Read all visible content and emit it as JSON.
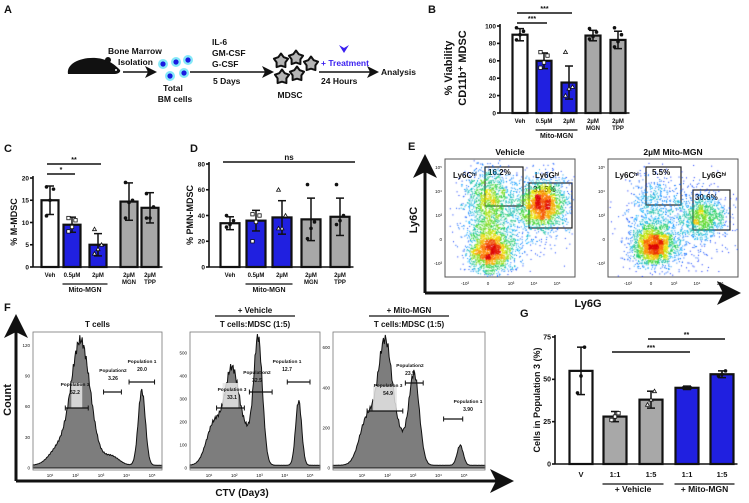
{
  "panel_labels": {
    "a": "A",
    "b": "B",
    "c": "C",
    "d": "D",
    "e": "E",
    "f": "F",
    "g": "G"
  },
  "panel_a": {
    "bm_line1": "Bone Marrow",
    "bm_line2": "Isolation",
    "cells_line1": "Total",
    "cells_line2": "BM cells",
    "cytokines": [
      "IL-6",
      "GM-CSF",
      "G-CSF"
    ],
    "duration": "5 Days",
    "mdsc": "MDSC",
    "treatment": "+ Treatment",
    "treatment_time": "24 Hours",
    "analysis": "Analysis",
    "colors": {
      "treatment": "#3a1ff0",
      "cell": "#1a1ae0",
      "cell_halo": "#86e8f8",
      "mdsc": "#b5b5b5"
    }
  },
  "chart_data": [
    {
      "id": "B",
      "type": "bar",
      "ylabel": [
        "% Viability",
        "CD11b⁺ MDSC"
      ],
      "ylim": [
        0,
        100
      ],
      "yticks": [
        0,
        20,
        40,
        60,
        80,
        100
      ],
      "categories": [
        [
          "Veh"
        ],
        [
          "0.5µM"
        ],
        [
          "2µM"
        ],
        [
          "2µM",
          "MGN"
        ],
        [
          "2µM",
          "TPP"
        ]
      ],
      "values": [
        90,
        60,
        35,
        89,
        84
      ],
      "errors": [
        7,
        9,
        19,
        6,
        10
      ],
      "points": [
        [
          84,
          90,
          94,
          98
        ],
        [
          52,
          58,
          66,
          70
        ],
        [
          20,
          28,
          30,
          70
        ],
        [
          85,
          88,
          93,
          97
        ],
        [
          76,
          82,
          90,
          98
        ]
      ],
      "colors": [
        "#ffffff",
        "#2020e0",
        "#2020e0",
        "#a8a8a8",
        "#a8a8a8"
      ],
      "groups": [
        {
          "label": "Mito-MGN",
          "from": 1,
          "to": 2
        }
      ],
      "significance": [
        {
          "from": 0,
          "to": 2,
          "label": "***"
        },
        {
          "from": 0,
          "to": 1,
          "label": "***"
        }
      ]
    },
    {
      "id": "C",
      "type": "bar",
      "ylabel": [
        "% M-MDSC"
      ],
      "ylim": [
        0,
        20
      ],
      "yticks": [
        0,
        5,
        10,
        15,
        20
      ],
      "categories": [
        [
          "Veh"
        ],
        [
          "0.5µM"
        ],
        [
          "2µM"
        ],
        [
          "2µM",
          "MGN"
        ],
        [
          "2µM",
          "TPP"
        ]
      ],
      "values": [
        15,
        9.5,
        5,
        14.7,
        13.3
      ],
      "errors": [
        3.2,
        1.7,
        2.5,
        4.2,
        3.4
      ],
      "points": [
        [
          11.5,
          15,
          17.5,
          18
        ],
        [
          8,
          9,
          10.5,
          11
        ],
        [
          3,
          4,
          5,
          8.5
        ],
        [
          11,
          14.5,
          15,
          19
        ],
        [
          11,
          11,
          13.5,
          16.5
        ]
      ],
      "colors": [
        "#ffffff",
        "#2020e0",
        "#2020e0",
        "#a8a8a8",
        "#a8a8a8"
      ],
      "groups": [
        {
          "label": "Mito-MGN",
          "from": 1,
          "to": 2
        }
      ],
      "significance": [
        {
          "from": 0,
          "to": 2,
          "label": "**"
        },
        {
          "from": 0,
          "to": 1,
          "label": "*"
        }
      ]
    },
    {
      "id": "D",
      "type": "bar",
      "ylabel": [
        "% PMN-MDSC"
      ],
      "ylim": [
        0,
        80
      ],
      "yticks": [
        0,
        20,
        40,
        60,
        80
      ],
      "categories": [
        [
          "Veh"
        ],
        [
          "0.5µM"
        ],
        [
          "2µM"
        ],
        [
          "2µM",
          "MGN"
        ],
        [
          "2µM",
          "TPP"
        ]
      ],
      "values": [
        34,
        36,
        38.5,
        37,
        39
      ],
      "errors": [
        5,
        8,
        13,
        16.5,
        14.5
      ],
      "points": [
        [
          31,
          33,
          36,
          40
        ],
        [
          20,
          35,
          40,
          41
        ],
        [
          30,
          30,
          40,
          60
        ],
        [
          22,
          30,
          35,
          64
        ],
        [
          33,
          36,
          40,
          64
        ]
      ],
      "colors": [
        "#ffffff",
        "#2020e0",
        "#2020e0",
        "#a8a8a8",
        "#a8a8a8"
      ],
      "groups": [
        {
          "label": "Mito-MGN",
          "from": 1,
          "to": 2
        }
      ],
      "significance": [
        {
          "from": 0,
          "to": 4,
          "label": "ns"
        }
      ]
    },
    {
      "id": "G",
      "type": "bar",
      "ylabel": [
        "Cells in Population 3 (%)"
      ],
      "ylim": [
        0,
        75
      ],
      "yticks": [
        0,
        25,
        50,
        75
      ],
      "categories": [
        [
          "V"
        ],
        [
          "1:1"
        ],
        [
          "1:5"
        ],
        [
          "1:1"
        ],
        [
          "1:5"
        ]
      ],
      "values": [
        55,
        28,
        38,
        45,
        53
      ],
      "errors": [
        14,
        3,
        5,
        1,
        2
      ],
      "points": [
        [
          42,
          52,
          69
        ],
        [
          26,
          28,
          30
        ],
        [
          35,
          38,
          43
        ],
        [
          45,
          45,
          45
        ],
        [
          52,
          53,
          55
        ]
      ],
      "colors": [
        "#ffffff",
        "#a8a8a8",
        "#a8a8a8",
        "#2020e0",
        "#2020e0"
      ],
      "groups": [
        {
          "label": "+ Vehicle",
          "from": 1,
          "to": 2
        },
        {
          "label": "+ Mito-MGN",
          "from": 3,
          "to": 4
        }
      ],
      "significance": [
        {
          "from": 1,
          "to": 3,
          "label": "***"
        },
        {
          "from": 2,
          "to": 4,
          "label": "**"
        }
      ]
    },
    {
      "id": "E",
      "type": "scatter",
      "xlabel": "Ly6G",
      "ylabel": "Ly6C",
      "yticks": [
        "10⁵",
        "10⁴",
        "10³",
        "0",
        "-10³"
      ],
      "xticks": [
        "-10³",
        "0",
        "10³",
        "10⁴",
        "10⁵"
      ],
      "plots": [
        {
          "title": "Vehicle",
          "gates": [
            {
              "name": "Ly6Cʰⁱ",
              "value": "16.2%"
            },
            {
              "name": "Ly6Gʰⁱ",
              "value": "31.5%"
            }
          ]
        },
        {
          "title": "2µM  Mito-MGN",
          "gates": [
            {
              "name": "Ly6Cʰⁱ",
              "value": "5.5%"
            },
            {
              "name": "Ly6Gʰⁱ",
              "value": "30.6%"
            }
          ]
        }
      ]
    },
    {
      "id": "F",
      "type": "area",
      "xlabel": "CTV (Day3)",
      "ylabel": "Count",
      "xticks": [
        "10¹",
        "10²",
        "10³",
        "10⁴",
        "10⁵"
      ],
      "plots": [
        {
          "title": "T cells",
          "header": "",
          "ymax": 133,
          "yticks": [
            0,
            30,
            60,
            90,
            120
          ],
          "peaks": [
            [
              1.3,
              15,
              0.35
            ],
            [
              2.2,
              122,
              0.38
            ],
            [
              3.4,
              9,
              0.3
            ],
            [
              4.6,
              73,
              0.14
            ]
          ],
          "populations": [
            {
              "name": "Population 3",
              "value": "52.2"
            },
            {
              "name": "Population2",
              "value": "3.26"
            },
            {
              "name": "Population 1",
              "value": "20.0"
            }
          ]
        },
        {
          "title": "T cells:MDSC (1:5)",
          "header": "+ Vehicle",
          "ymax": 591,
          "yticks": [
            0,
            100,
            200,
            300,
            400,
            500
          ],
          "peaks": [
            [
              1.2,
              180,
              0.3
            ],
            [
              1.9,
              400,
              0.28
            ],
            [
              2.95,
              520,
              0.17
            ],
            [
              2.5,
              120,
              0.3
            ],
            [
              4.55,
              280,
              0.12
            ]
          ],
          "populations": [
            {
              "name": "Population 3",
              "value": "33.1"
            },
            {
              "name": "Population2",
              "value": "32.5"
            },
            {
              "name": "Population 1",
              "value": "12.7"
            }
          ]
        },
        {
          "title": "T cells:MDSC (1:5)",
          "header": "+ Mito-MGN",
          "ymax": 678,
          "yticks": [
            0,
            200,
            400,
            600
          ],
          "peaks": [
            [
              1.2,
              230,
              0.3
            ],
            [
              1.9,
              600,
              0.28
            ],
            [
              3.05,
              440,
              0.2
            ],
            [
              2.5,
              120,
              0.3
            ],
            [
              4.85,
              100,
              0.12
            ]
          ],
          "populations": [
            {
              "name": "Population 3",
              "value": "54.9"
            },
            {
              "name": "Population2",
              "value": "23.5"
            },
            {
              "name": "Population 1",
              "value": "3.90"
            }
          ]
        }
      ]
    }
  ]
}
